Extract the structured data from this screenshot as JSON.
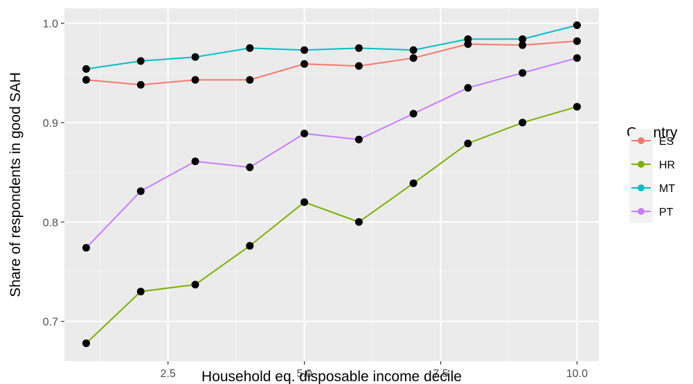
{
  "chart_data": {
    "type": "line",
    "title": "",
    "xlabel": "Household eq. disposable income decile",
    "ylabel": "Share of respondents in good SAH",
    "xlim": [
      0.6,
      10.4
    ],
    "ylim": [
      0.66,
      1.015
    ],
    "x_ticks": [
      2.5,
      5.0,
      7.5,
      10.0
    ],
    "x_tick_labels": [
      "2.5",
      "5.0",
      "7.5",
      "10.0"
    ],
    "y_ticks": [
      0.7,
      0.8,
      0.9,
      1.0
    ],
    "y_tick_labels": [
      "0.7",
      "0.8",
      "0.9",
      "1.0"
    ],
    "grid": true,
    "legend_title": "Country",
    "legend_position": "right",
    "x": [
      1,
      2,
      3,
      4,
      5,
      6,
      7,
      8,
      9,
      10
    ],
    "series": [
      {
        "name": "ES",
        "color": "#F8766D",
        "values": [
          0.943,
          0.938,
          0.943,
          0.943,
          0.959,
          0.957,
          0.965,
          0.979,
          0.978,
          0.982
        ]
      },
      {
        "name": "HR",
        "color": "#7CAE00",
        "values": [
          0.678,
          0.73,
          0.737,
          0.776,
          0.82,
          0.8,
          0.839,
          0.879,
          0.9,
          0.916
        ]
      },
      {
        "name": "MT",
        "color": "#00BFC4",
        "values": [
          0.954,
          0.962,
          0.966,
          0.975,
          0.973,
          0.975,
          0.973,
          0.984,
          0.984,
          0.998
        ]
      },
      {
        "name": "PT",
        "color": "#C77CFF",
        "values": [
          0.774,
          0.831,
          0.861,
          0.855,
          0.889,
          0.883,
          0.909,
          0.935,
          0.95,
          0.965
        ]
      }
    ]
  }
}
